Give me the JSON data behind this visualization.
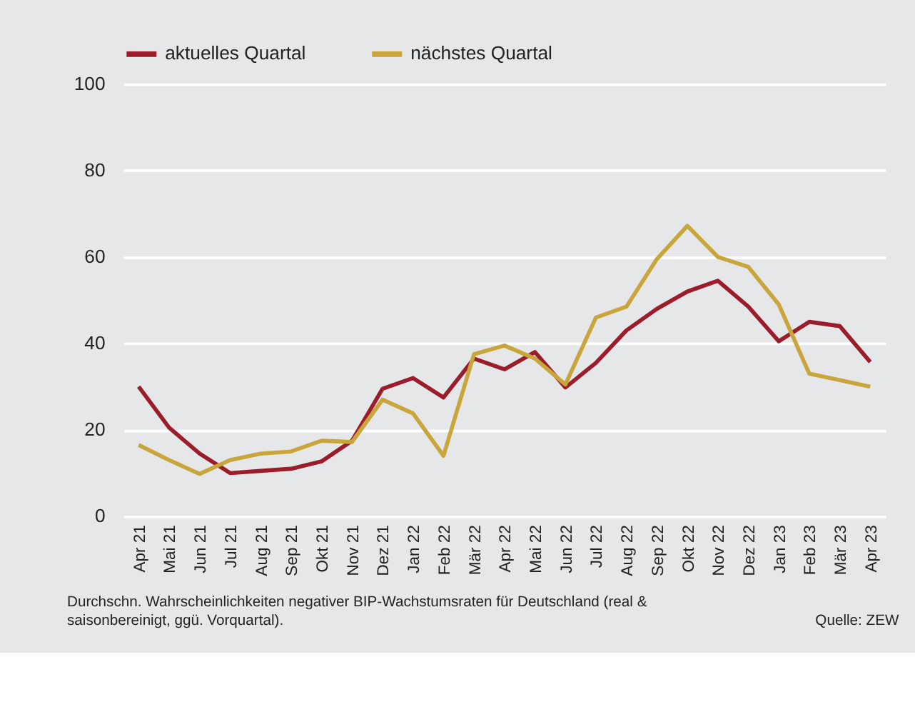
{
  "chart_data": {
    "type": "line",
    "categories": [
      "Apr 21",
      "Mai 21",
      "Jun 21",
      "Jul 21",
      "Aug 21",
      "Sep 21",
      "Okt 21",
      "Nov 21",
      "Dez 21",
      "Jan 22",
      "Feb 22",
      "Mär 22",
      "Apr 22",
      "Mai 22",
      "Jun 22",
      "Jul 22",
      "Aug 22",
      "Sep 22",
      "Okt 22",
      "Nov 22",
      "Dez 22",
      "Jan 23",
      "Feb 23",
      "Mär 23",
      "Apr 23"
    ],
    "series": [
      {
        "name": "aktuelles Quartal",
        "color": "#9b1c2a",
        "values": [
          30,
          20.5,
          14.5,
          10,
          10.5,
          11,
          12.7,
          17.5,
          29.5,
          32,
          27.5,
          36.5,
          34,
          38,
          29.8,
          35.5,
          43,
          48,
          52,
          54.5,
          48.5,
          40.5,
          45,
          44,
          35.7
        ]
      },
      {
        "name": "nächstes Quartal",
        "color": "#c9a63c",
        "values": [
          16.5,
          13,
          9.8,
          13,
          14.5,
          15,
          17.5,
          17.2,
          27,
          23.8,
          14,
          37.5,
          39.5,
          36.5,
          30.5,
          46,
          48.5,
          59.5,
          67.2,
          60,
          57.7,
          49,
          33,
          31.5,
          30
        ]
      }
    ],
    "ylim": [
      0,
      100
    ],
    "yticks": [
      0,
      20,
      40,
      60,
      80,
      100
    ],
    "grid": "y",
    "legend": "top",
    "line_style": "solid",
    "annotations": [
      "Durchschn. Wahrscheinlichkeiten negativer BIP-Wachstumsraten für Deutschland (real & saisonbereinigt, ggü. Vorquartal).",
      "Quelle: ZEW"
    ]
  }
}
